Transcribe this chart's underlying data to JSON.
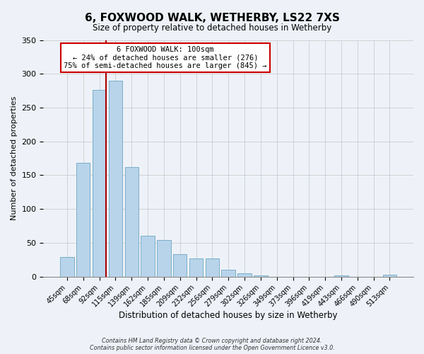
{
  "title": "6, FOXWOOD WALK, WETHERBY, LS22 7XS",
  "subtitle": "Size of property relative to detached houses in Wetherby",
  "xlabel": "Distribution of detached houses by size in Wetherby",
  "ylabel": "Number of detached properties",
  "bar_labels": [
    "45sqm",
    "68sqm",
    "92sqm",
    "115sqm",
    "139sqm",
    "162sqm",
    "185sqm",
    "209sqm",
    "232sqm",
    "256sqm",
    "279sqm",
    "302sqm",
    "326sqm",
    "349sqm",
    "373sqm",
    "396sqm",
    "419sqm",
    "443sqm",
    "466sqm",
    "490sqm",
    "513sqm"
  ],
  "bar_values": [
    29,
    168,
    276,
    290,
    162,
    60,
    54,
    33,
    27,
    27,
    10,
    5,
    2,
    0,
    0,
    0,
    0,
    2,
    0,
    0,
    3
  ],
  "bar_color": "#b8d4ea",
  "bar_edgecolor": "#7aafc8",
  "grid_color": "#cccccc",
  "annotation_line_color": "#aa0000",
  "annotation_box_text": "6 FOXWOOD WALK: 100sqm\n← 24% of detached houses are smaller (276)\n75% of semi-detached houses are larger (845) →",
  "annotation_box_color": "#ffffff",
  "annotation_box_edgecolor": "#cc0000",
  "footer_line1": "Contains HM Land Registry data © Crown copyright and database right 2024.",
  "footer_line2": "Contains public sector information licensed under the Open Government Licence v3.0.",
  "ylim": [
    0,
    350
  ],
  "yticks": [
    0,
    50,
    100,
    150,
    200,
    250,
    300,
    350
  ],
  "background_color": "#eef2f8"
}
